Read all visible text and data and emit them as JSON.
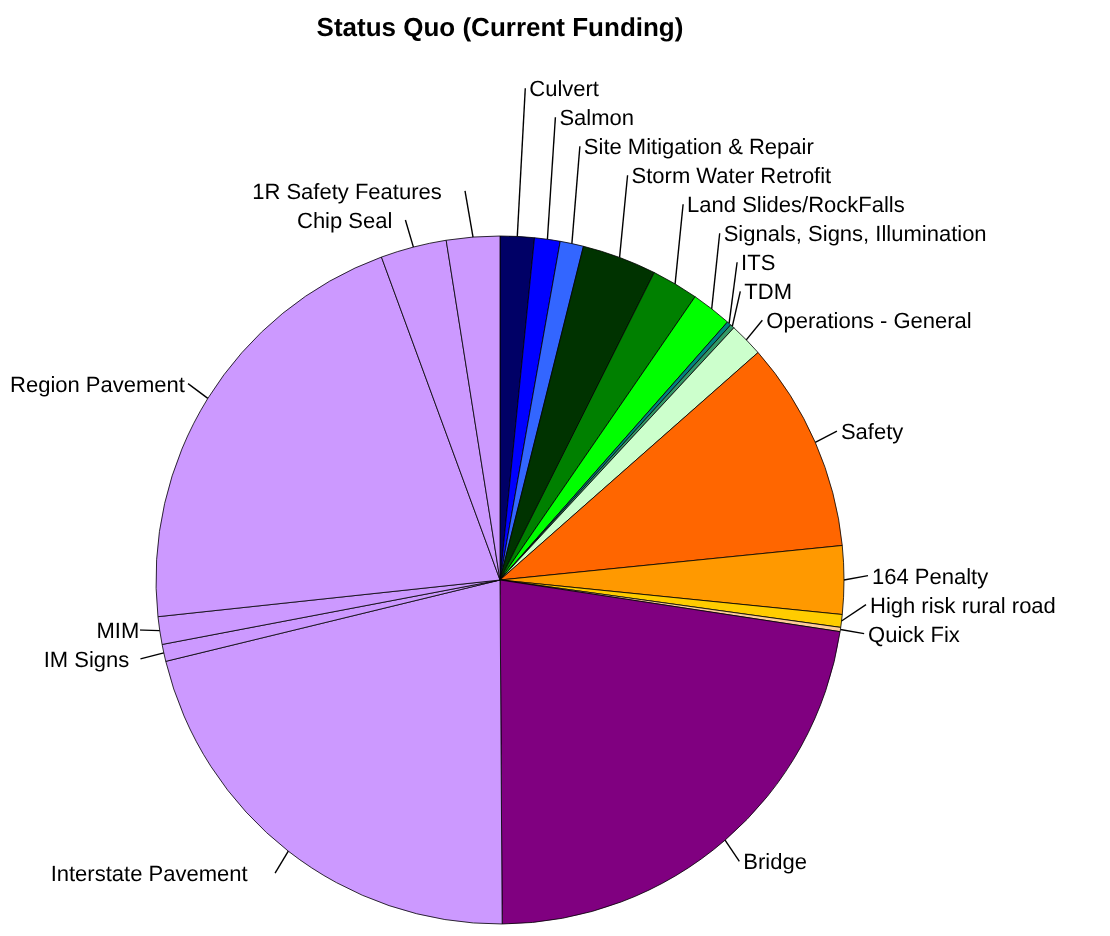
{
  "chart_data": {
    "type": "pie",
    "title": "Status Quo (Current Funding)",
    "categories": [
      "Culvert",
      "Salmon",
      "Site Mitigation & Repair",
      "Storm Water Retrofit",
      "Land Slides/RockFalls",
      "Signals, Signs, Illumination",
      "ITS",
      "TDM",
      "Operations - General",
      "Safety",
      "164 Penalty",
      "High risk rural road",
      "Quick Fix",
      "Bridge",
      "Interstate Pavement",
      "IM Signs",
      "MIM",
      "Region Pavement",
      "Chip Seal",
      "1R Safety Features"
    ],
    "values": [
      1.6,
      1.2,
      1.1,
      3.5,
      2.2,
      1.9,
      0.2,
      0.2,
      1.6,
      9.9,
      3.2,
      0.6,
      0.2,
      22.5,
      21.3,
      0.8,
      1.3,
      21.1,
      3.1,
      2.5
    ],
    "colors": [
      "#000066",
      "#0000ff",
      "#3366ff",
      "#003300",
      "#008000",
      "#00ff00",
      "#008080",
      "#339966",
      "#ccffcc",
      "#ff6600",
      "#ff9900",
      "#ffcc00",
      "#ffcc99",
      "#800080",
      "#cc99ff",
      "#cc99ff",
      "#cc99ff",
      "#cc99ff",
      "#cc99ff",
      "#cc99ff"
    ]
  }
}
